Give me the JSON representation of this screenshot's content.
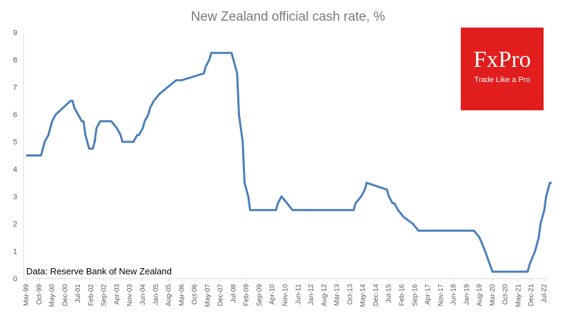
{
  "chart_data": {
    "type": "line",
    "title": "New Zealand official cash rate, %",
    "source": "Data: Reserve Bank of New Zealand",
    "ylim": [
      0,
      9
    ],
    "y_ticks": [
      "0",
      "1",
      "2",
      "3",
      "4",
      "5",
      "6",
      "7",
      "8",
      "9"
    ],
    "x_ticks": [
      "Mar-99",
      "Oct-99",
      "May-00",
      "Dec-00",
      "Jul-01",
      "Feb-02",
      "Sep-02",
      "Apr-03",
      "Nov-03",
      "Jun-04",
      "Jan-05",
      "Aug-05",
      "Mar-06",
      "Oct-06",
      "May-07",
      "Dec-07",
      "Jul-08",
      "Feb-09",
      "Sep-09",
      "Apr-10",
      "Nov-10",
      "Jun-11",
      "Jan-12",
      "Aug-12",
      "Mar-13",
      "Oct-13",
      "May-14",
      "Dec-14",
      "Jul-15",
      "Feb-16",
      "Sep-16",
      "Apr-17",
      "Nov-17",
      "Jun-18",
      "Jan-19",
      "Aug-19",
      "Mar-20",
      "Oct-20",
      "May-21",
      "Dec-21",
      "Jul-22"
    ],
    "grid": false,
    "line_color": "#4a7ebb",
    "series": [
      {
        "x": [
          "1999-03",
          "1999-11",
          "2000-01",
          "2000-03",
          "2000-05",
          "2000-07",
          "2001-03",
          "2001-04",
          "2001-05",
          "2001-09",
          "2001-10",
          "2001-11",
          "2002-01",
          "2002-03",
          "2002-04",
          "2002-05",
          "2002-07",
          "2003-01",
          "2003-04",
          "2003-06",
          "2003-07",
          "2004-01",
          "2004-03",
          "2004-04",
          "2004-06",
          "2004-07",
          "2004-09",
          "2004-10",
          "2004-12",
          "2005-03",
          "2005-12",
          "2006-03",
          "2007-03",
          "2007-04",
          "2007-06",
          "2007-07",
          "2008-06",
          "2008-07",
          "2008-09",
          "2008-10",
          "2008-12",
          "2009-01",
          "2009-03",
          "2009-04",
          "2010-06",
          "2010-07",
          "2010-09",
          "2011-03",
          "2012-01",
          "2013-12",
          "2014-01",
          "2014-04",
          "2014-06",
          "2014-07",
          "2015-06",
          "2015-07",
          "2015-09",
          "2015-10",
          "2015-12",
          "2016-03",
          "2016-08",
          "2016-11",
          "2019-05",
          "2019-08",
          "2019-11",
          "2020-03",
          "2021-10",
          "2021-11",
          "2022-02",
          "2022-04",
          "2022-05",
          "2022-07",
          "2022-08",
          "2022-10",
          "2022-11"
        ],
        "y": [
          4.5,
          4.5,
          5.0,
          5.25,
          5.75,
          6.0,
          6.5,
          6.5,
          6.25,
          5.75,
          5.75,
          5.25,
          4.75,
          4.75,
          5.0,
          5.5,
          5.75,
          5.75,
          5.5,
          5.25,
          5.0,
          5.0,
          5.25,
          5.25,
          5.5,
          5.75,
          6.0,
          6.25,
          6.5,
          6.75,
          7.25,
          7.25,
          7.5,
          7.75,
          8.0,
          8.25,
          8.25,
          8.0,
          7.5,
          6.0,
          5.0,
          3.5,
          3.0,
          2.5,
          2.5,
          2.75,
          3.0,
          2.5,
          2.5,
          2.5,
          2.75,
          3.0,
          3.25,
          3.5,
          3.25,
          3.0,
          2.75,
          2.75,
          2.5,
          2.25,
          2.0,
          1.75,
          1.75,
          1.5,
          1.0,
          0.25,
          0.25,
          0.5,
          1.0,
          1.5,
          2.0,
          2.5,
          3.0,
          3.5,
          3.5
        ]
      }
    ]
  },
  "logo": {
    "word": "FxPro",
    "tagline": "Trade Like a Pro",
    "color": "#e21d1d"
  }
}
